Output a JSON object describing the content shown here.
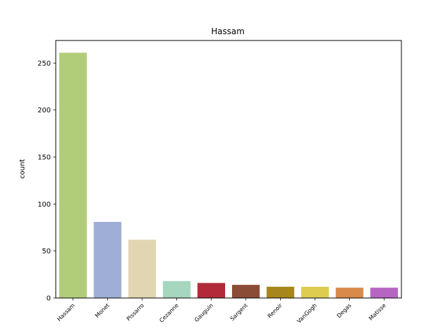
{
  "chart_data": {
    "type": "bar",
    "title": "Hassam",
    "xlabel": "",
    "ylabel": "count",
    "categories": [
      "Hassam",
      "Monet",
      "Pissarro",
      "Cezanne",
      "Gauguin",
      "Sargent",
      "Renoir",
      "VanGogh",
      "Degas",
      "Matisse"
    ],
    "values": [
      261,
      81,
      62,
      18,
      16,
      14,
      12,
      12,
      11,
      11
    ],
    "colors": [
      "#b2cd7a",
      "#9eaed6",
      "#e2d6b2",
      "#a6d6be",
      "#b22a39",
      "#8b4c36",
      "#a7871b",
      "#decc50",
      "#d98a4a",
      "#b666c2"
    ],
    "ylim": [
      0,
      274
    ],
    "yticks": [
      0,
      50,
      100,
      150,
      200,
      250
    ],
    "grid": false,
    "legend": "none"
  }
}
